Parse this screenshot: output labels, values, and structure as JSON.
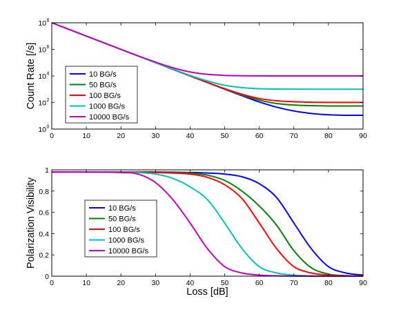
{
  "chart_data": [
    {
      "type": "line",
      "title": "",
      "xlabel": "",
      "ylabel": "Count Rate [/s]",
      "xlim": [
        0,
        90
      ],
      "ylim": [
        1,
        100000000
      ],
      "yscale": "log",
      "grid": false,
      "legend_position": "center-left",
      "xticks": [
        0,
        10,
        20,
        30,
        40,
        50,
        60,
        70,
        80,
        90
      ],
      "yticks": [
        {
          "base": "10",
          "exp": "0",
          "value": 1
        },
        {
          "base": "10",
          "exp": "2",
          "value": 100
        },
        {
          "base": "10",
          "exp": "4",
          "value": 10000
        },
        {
          "base": "10",
          "exp": "6",
          "value": 1000000
        },
        {
          "base": "10",
          "exp": "8",
          "value": 100000000
        }
      ],
      "x": [
        0,
        10,
        20,
        30,
        35,
        40,
        45,
        50,
        55,
        60,
        65,
        70,
        75,
        80,
        85,
        90
      ],
      "series": [
        {
          "name": "10 BG/s",
          "color": "#0000ff",
          "values": [
            100000000,
            10000000,
            1000000,
            100000,
            31600,
            10000,
            3200,
            1000,
            330,
            110,
            45,
            23,
            15,
            12,
            11,
            11
          ]
        },
        {
          "name": "50 BG/s",
          "color": "#008000",
          "values": [
            100000000,
            10000000,
            1000000,
            100000,
            31600,
            10050,
            3200,
            1050,
            370,
            150,
            85,
            65,
            58,
            55,
            55,
            55
          ]
        },
        {
          "name": "100 BG/s",
          "color": "#ff0000",
          "values": [
            100000000,
            10000000,
            1000000,
            100000,
            31600,
            10100,
            3250,
            1100,
            420,
            200,
            135,
            115,
            105,
            102,
            101,
            101
          ]
        },
        {
          "name": "1000 BG/s",
          "color": "#00bfbf",
          "values": [
            100000000,
            10000000,
            1000000,
            100000,
            32600,
            11000,
            4200,
            2000,
            1330,
            1100,
            1030,
            1010,
            1005,
            1002,
            1001,
            1001
          ]
        },
        {
          "name": "10000 BG/s",
          "color": "#bf00bf",
          "values": [
            100000000,
            10000000,
            1000000,
            110000,
            41600,
            20000,
            13200,
            11000,
            10330,
            10100,
            10040,
            10020,
            10010,
            10005,
            10002,
            10001
          ]
        }
      ]
    },
    {
      "type": "line",
      "title": "",
      "xlabel": "Loss [dB]",
      "ylabel": "Polarization Visibility",
      "xlim": [
        0,
        90
      ],
      "ylim": [
        0,
        1
      ],
      "grid": false,
      "legend_position": "center-left",
      "xticks": [
        0,
        10,
        20,
        30,
        40,
        50,
        60,
        70,
        80,
        90
      ],
      "yticks": [
        "0",
        "0.2",
        "0.4",
        "0.6",
        "0.8",
        "1"
      ],
      "x": [
        0,
        10,
        20,
        25,
        30,
        35,
        40,
        45,
        50,
        55,
        60,
        65,
        70,
        75,
        80,
        85,
        90
      ],
      "series": [
        {
          "name": "10 BG/s",
          "color": "#0000ff",
          "values": [
            0.98,
            0.98,
            0.98,
            0.98,
            0.98,
            0.978,
            0.975,
            0.97,
            0.96,
            0.935,
            0.87,
            0.74,
            0.5,
            0.26,
            0.09,
            0.03,
            0.01
          ]
        },
        {
          "name": "50 BG/s",
          "color": "#008000",
          "values": [
            0.98,
            0.98,
            0.98,
            0.98,
            0.978,
            0.975,
            0.97,
            0.95,
            0.9,
            0.8,
            0.66,
            0.48,
            0.24,
            0.08,
            0.02,
            0.005,
            0.002
          ]
        },
        {
          "name": "100 BG/s",
          "color": "#ff0000",
          "values": [
            0.98,
            0.98,
            0.98,
            0.98,
            0.975,
            0.97,
            0.96,
            0.93,
            0.86,
            0.73,
            0.5,
            0.26,
            0.09,
            0.03,
            0.01,
            0.002,
            0.001
          ]
        },
        {
          "name": "1000 BG/s",
          "color": "#00bfbf",
          "values": [
            0.98,
            0.98,
            0.978,
            0.975,
            0.96,
            0.92,
            0.84,
            0.72,
            0.5,
            0.26,
            0.09,
            0.03,
            0.01,
            0.003,
            0.001,
            0.0,
            0.0
          ]
        },
        {
          "name": "10000 BG/s",
          "color": "#bf00bf",
          "values": [
            0.98,
            0.98,
            0.975,
            0.96,
            0.88,
            0.72,
            0.5,
            0.26,
            0.09,
            0.03,
            0.01,
            0.003,
            0.001,
            0.0,
            0.0,
            0.0,
            0.0
          ]
        }
      ]
    }
  ]
}
